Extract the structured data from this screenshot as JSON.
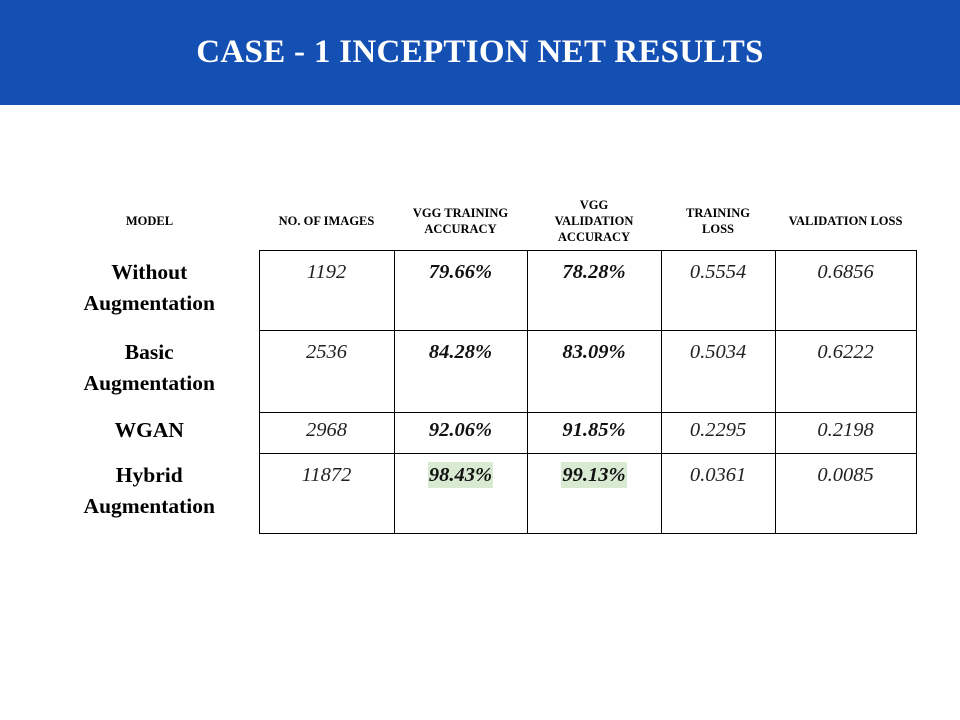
{
  "title": "CASE - 1 INCEPTION NET RESULTS",
  "colors": {
    "title_bar": "#1450b4",
    "highlight": "#d9ead3"
  },
  "table": {
    "headers": [
      "MODEL",
      "NO. OF IMAGES",
      "VGG TRAINING ACCURACY",
      "VGG VALIDATION ACCURACY",
      "TRAINING LOSS",
      "VALIDATION LOSS"
    ],
    "rows": [
      {
        "model": "Without Augmentation",
        "images": "1192",
        "train_acc": "79.66%",
        "val_acc": "78.28%",
        "train_loss": "0.5554",
        "val_loss": "0.6856"
      },
      {
        "model": "Basic Augmentation",
        "images": "2536",
        "train_acc": "84.28%",
        "val_acc": "83.09%",
        "train_loss": "0.5034",
        "val_loss": "0.6222"
      },
      {
        "model": "WGAN",
        "images": "2968",
        "train_acc": "92.06%",
        "val_acc": "91.85%",
        "train_loss": "0.2295",
        "val_loss": "0.2198"
      },
      {
        "model": "Hybrid Augmentation",
        "images": "11872",
        "train_acc": "98.43%",
        "val_acc": "99.13%",
        "train_loss": "0.0361",
        "val_loss": "0.0085"
      }
    ]
  }
}
